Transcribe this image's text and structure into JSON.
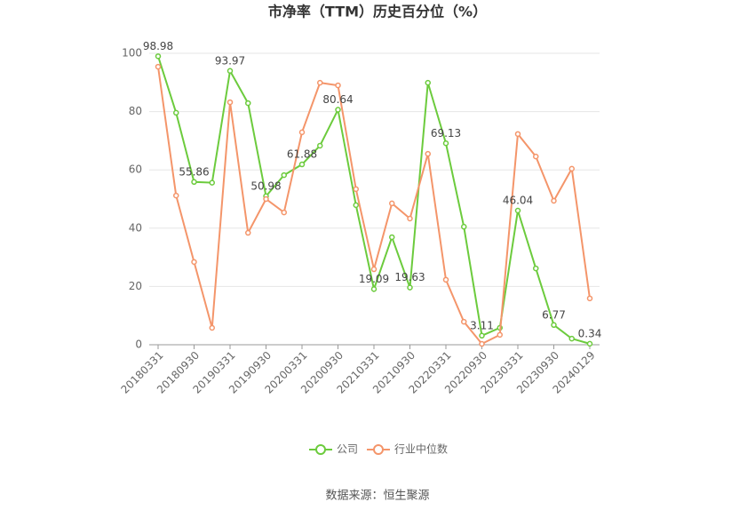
{
  "chart_data": {
    "type": "line",
    "title": "市净率（TTM）历史百分位（%）",
    "categories": [
      "20180331",
      null,
      "20180930",
      null,
      "20190331",
      null,
      "20190930",
      null,
      "20200331",
      null,
      "20200930",
      null,
      "20210331",
      null,
      "20210930",
      null,
      "20220331",
      null,
      "20220930",
      null,
      "20230331",
      null,
      "20230930",
      null,
      "20240129"
    ],
    "series": [
      {
        "name": "公司",
        "color": "#6ccb3d",
        "values": [
          98.98,
          79.6,
          55.86,
          55.6,
          93.97,
          82.9,
          50.98,
          58.2,
          61.88,
          68.3,
          80.64,
          47.9,
          19.09,
          36.9,
          19.63,
          89.9,
          69.13,
          40.5,
          3.11,
          5.8,
          46.04,
          26.2,
          6.77,
          2.1,
          0.34
        ]
      },
      {
        "name": "行业中位数",
        "color": "#f4956a",
        "values": [
          95.4,
          51.2,
          28.4,
          5.8,
          83.2,
          38.4,
          50.0,
          45.4,
          72.9,
          89.9,
          89.0,
          53.4,
          25.9,
          48.5,
          43.3,
          65.5,
          22.3,
          7.9,
          0.3,
          3.4,
          72.3,
          64.6,
          49.4,
          60.4,
          15.9
        ]
      }
    ],
    "ylim": [
      0,
      100
    ],
    "yticks": [
      0,
      20,
      40,
      60,
      80,
      100
    ],
    "grid": true,
    "source": "数据来源：恒生聚源"
  }
}
